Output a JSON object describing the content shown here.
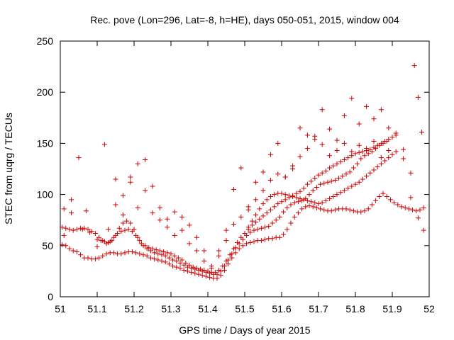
{
  "chart_data": {
    "type": "scatter",
    "title": "Rec. pove (Lon=296, Lat=-8, h=HE), days 050-051, 2015, window 004",
    "xlabel": "GPS time / Days of year 2015",
    "ylabel": "STEC from uqrg / TECUs",
    "xlim": [
      51,
      52
    ],
    "ylim": [
      0,
      250
    ],
    "xticks": [
      51,
      51.1,
      51.2,
      51.3,
      51.4,
      51.5,
      51.6,
      51.7,
      51.8,
      51.9,
      52
    ],
    "xtick_labels": [
      "51",
      "51.1",
      "51.2",
      "51.3",
      "51.4",
      "51.5",
      "51.6",
      "51.7",
      "51.8",
      "51.9",
      "52"
    ],
    "yticks": [
      0,
      50,
      100,
      150,
      200,
      250
    ],
    "ytick_labels": [
      "0",
      "50",
      "100",
      "150",
      "200",
      "250"
    ],
    "grid": false,
    "marker": "+",
    "color": "#cc0000",
    "series": [
      {
        "x": [
          51.005,
          51.015,
          51.025,
          51.035,
          51.045,
          51.055,
          51.065,
          51.075,
          51.085,
          51.095,
          51.105,
          51.115,
          51.125,
          51.135,
          51.145,
          51.155,
          51.165,
          51.175,
          51.185,
          51.195,
          51.205,
          51.215,
          51.225,
          51.235,
          51.245,
          51.255,
          51.265,
          51.275,
          51.285,
          51.295,
          51.305,
          51.315,
          51.325,
          51.335,
          51.345,
          51.355,
          51.365,
          51.375,
          51.385,
          51.395,
          51.405,
          51.415,
          51.425,
          51.435,
          51.445,
          51.455,
          51.465,
          51.475,
          51.485,
          51.495,
          51.505,
          51.515,
          51.525,
          51.535,
          51.545,
          51.555,
          51.565,
          51.575,
          51.585,
          51.595,
          51.605,
          51.615,
          51.625,
          51.635,
          51.645,
          51.655,
          51.665,
          51.675,
          51.685,
          51.695,
          51.705,
          51.715,
          51.725,
          51.735,
          51.745,
          51.755,
          51.765,
          51.775,
          51.785,
          51.795,
          51.805,
          51.815,
          51.825,
          51.835,
          51.845,
          51.855,
          51.865,
          51.875,
          51.885,
          51.895,
          51.905,
          51.915,
          51.925,
          51.935,
          51.945,
          51.955,
          51.965,
          51.975,
          51.985
        ],
        "y": [
          51,
          50,
          47,
          45,
          44,
          41,
          38,
          38,
          37,
          37,
          38,
          40,
          42,
          43,
          43,
          42,
          42,
          43,
          44,
          44,
          43,
          42,
          41,
          40,
          38,
          37,
          36,
          35,
          34,
          32,
          30,
          29,
          28,
          26,
          25,
          24,
          23,
          22,
          21,
          20,
          19,
          18,
          18,
          21,
          26,
          32,
          38,
          43,
          47,
          50,
          52,
          53,
          54,
          55,
          55,
          56,
          57,
          57,
          58,
          58,
          61,
          66,
          72,
          78,
          82,
          86,
          88,
          89,
          88,
          87,
          86,
          85,
          84,
          84,
          85,
          86,
          86,
          86,
          85,
          84,
          83,
          83,
          84,
          86,
          90,
          94,
          98,
          101,
          98,
          95,
          92,
          90,
          88,
          87,
          86,
          85,
          84,
          85,
          87
        ]
      },
      {
        "x": [
          51.005,
          51.015,
          51.025,
          51.035,
          51.045,
          51.055,
          51.065,
          51.075,
          51.085,
          51.095,
          51.105,
          51.115,
          51.125,
          51.135,
          51.145,
          51.155,
          51.165,
          51.175,
          51.185,
          51.195,
          51.205,
          51.215,
          51.225,
          51.235,
          51.245,
          51.255,
          51.265,
          51.275,
          51.285,
          51.295,
          51.305,
          51.315,
          51.325,
          51.335,
          51.345,
          51.355,
          51.365,
          51.375,
          51.385,
          51.395,
          51.405,
          51.415,
          51.425,
          51.435,
          51.445,
          51.455,
          51.465,
          51.475,
          51.485,
          51.495,
          51.505,
          51.515,
          51.525,
          51.535,
          51.545,
          51.555,
          51.565,
          51.575,
          51.585,
          51.595,
          51.605,
          51.615,
          51.625,
          51.635,
          51.645,
          51.655,
          51.665,
          51.675,
          51.685,
          51.695,
          51.705,
          51.715,
          51.725,
          51.735,
          51.745,
          51.755,
          51.765,
          51.775,
          51.785,
          51.795,
          51.805,
          51.815,
          51.825,
          51.835,
          51.845,
          51.855,
          51.865,
          51.875,
          51.885
        ],
        "y": [
          68,
          67,
          66,
          65,
          66,
          67,
          67,
          66,
          64,
          62,
          58,
          55,
          52,
          54,
          58,
          62,
          64,
          65,
          66,
          64,
          60,
          55,
          50,
          47,
          45,
          43,
          42,
          41,
          40,
          38,
          36,
          35,
          33,
          31,
          29,
          28,
          27,
          26,
          25,
          24,
          23,
          22,
          22,
          25,
          30,
          36,
          42,
          48,
          52,
          56,
          60,
          63,
          65,
          66,
          67,
          68,
          69,
          72,
          75,
          78,
          83,
          87,
          90,
          92,
          93,
          94,
          96,
          100,
          104,
          107,
          110,
          111,
          112,
          113,
          114,
          116,
          118,
          120,
          122,
          126,
          130,
          135,
          138,
          140,
          142,
          145,
          148,
          150,
          152
        ]
      },
      {
        "x": [
          51.1,
          51.11,
          51.12,
          51.13,
          51.14,
          51.15,
          51.16,
          51.17,
          51.18,
          51.19,
          51.2,
          51.21,
          51.22,
          51.23,
          51.24,
          51.25,
          51.26,
          51.27,
          51.28,
          51.29,
          51.3,
          51.31,
          51.32,
          51.33,
          51.34,
          51.35,
          51.36,
          51.37,
          51.38,
          51.39,
          51.4,
          51.41,
          51.42,
          51.43,
          51.44,
          51.45,
          51.46,
          51.47,
          51.48,
          51.49,
          51.5,
          51.51,
          51.52,
          51.53,
          51.54,
          51.55,
          51.56,
          51.57,
          51.58,
          51.59,
          51.6,
          51.61,
          51.62,
          51.63,
          51.64,
          51.65,
          51.66,
          51.67,
          51.68,
          51.69,
          51.7,
          51.71,
          51.72,
          51.73,
          51.74,
          51.75,
          51.76,
          51.77,
          51.78,
          51.79,
          51.8,
          51.81,
          51.82,
          51.83,
          51.84,
          51.85,
          51.86,
          51.87,
          51.88,
          51.89,
          51.9
        ],
        "y": [
          56,
          55,
          54,
          53,
          55,
          60,
          67,
          72,
          74,
          72,
          66,
          58,
          52,
          50,
          48,
          47,
          46,
          45,
          44,
          43,
          42,
          40,
          38,
          36,
          33,
          31,
          29,
          28,
          27,
          26,
          25,
          24,
          24,
          26,
          30,
          35,
          41,
          47,
          53,
          58,
          62,
          66,
          70,
          73,
          76,
          79,
          82,
          85,
          88,
          91,
          93,
          95,
          97,
          99,
          101,
          103,
          106,
          110,
          113,
          116,
          119,
          121,
          123,
          126,
          128,
          130,
          132,
          134,
          136,
          138,
          140,
          141,
          142,
          143,
          144,
          146,
          148,
          150,
          152,
          154,
          156
        ]
      },
      {
        "x": [
          51.5,
          51.51,
          51.52,
          51.53,
          51.54,
          51.55,
          51.56,
          51.57,
          51.58,
          51.59,
          51.6,
          51.61,
          51.62,
          51.63,
          51.64,
          51.65,
          51.66,
          51.67,
          51.68,
          51.69,
          51.7,
          51.71,
          51.72,
          51.73,
          51.74,
          51.75,
          51.76,
          51.77,
          51.78,
          51.79,
          51.8,
          51.81,
          51.82,
          51.83,
          51.84,
          51.85,
          51.86,
          51.87,
          51.88,
          51.89,
          51.9,
          51.91
        ],
        "y": [
          62,
          68,
          74,
          80,
          86,
          91,
          95,
          98,
          100,
          101,
          101,
          100,
          99,
          98,
          97,
          96,
          95,
          94,
          93,
          92,
          91,
          92,
          94,
          96,
          98,
          100,
          102,
          104,
          106,
          108,
          110,
          112,
          115,
          118,
          121,
          124,
          127,
          130,
          133,
          136,
          139,
          142
        ]
      },
      {
        "x": [
          51.01,
          51.03,
          51.05,
          51.07,
          51.12,
          51.15,
          51.17,
          51.19,
          51.21,
          51.23,
          51.25,
          51.27,
          51.29,
          51.31,
          51.33,
          51.35,
          51.37,
          51.39,
          51.41,
          51.43,
          51.45,
          51.47,
          51.49,
          51.51,
          51.53,
          51.55,
          51.57,
          51.59,
          51.61,
          51.63,
          51.65,
          51.67,
          51.69,
          51.71,
          51.73,
          51.75,
          51.77,
          51.79,
          51.81,
          51.83,
          51.85,
          51.87,
          51.89,
          51.91,
          51.93,
          51.95,
          51.96,
          51.97,
          51.98
        ],
        "y": [
          86,
          82,
          136,
          84,
          149,
          115,
          99,
          117,
          130,
          134,
          108,
          87,
          76,
          83,
          78,
          70,
          58,
          45,
          30,
          40,
          65,
          105,
          126,
          88,
          112,
          122,
          139,
          150,
          117,
          125,
          165,
          158,
          154,
          183,
          164,
          153,
          177,
          194,
          169,
          186,
          174,
          183,
          165,
          160,
          144,
          121,
          226,
          195,
          161
        ]
      },
      {
        "x": [
          51.01,
          51.03,
          51.06,
          51.08,
          51.1,
          51.13,
          51.15,
          51.17,
          51.19,
          51.21,
          51.23,
          51.25,
          51.27,
          51.29,
          51.31,
          51.33,
          51.35,
          51.37,
          51.39,
          51.41,
          51.43,
          51.45,
          51.47,
          51.49,
          51.51,
          51.53,
          51.55,
          51.57,
          51.59,
          51.61,
          51.63,
          51.65,
          51.67,
          51.69,
          51.71,
          51.73,
          51.75,
          51.77,
          51.79,
          51.81,
          51.83,
          51.85,
          51.87,
          51.89,
          51.91,
          51.93,
          51.95,
          51.97,
          51.985
        ],
        "y": [
          60,
          95,
          66,
          63,
          49,
          66,
          90,
          80,
          112,
          87,
          104,
          82,
          75,
          68,
          60,
          65,
          52,
          45,
          35,
          28,
          45,
          55,
          71,
          78,
          85,
          95,
          104,
          114,
          120,
          117,
          128,
          137,
          145,
          157,
          149,
          138,
          143,
          150,
          142,
          148,
          145,
          152,
          136,
          143,
          158,
          135,
          97,
          77,
          65
        ]
      }
    ]
  }
}
